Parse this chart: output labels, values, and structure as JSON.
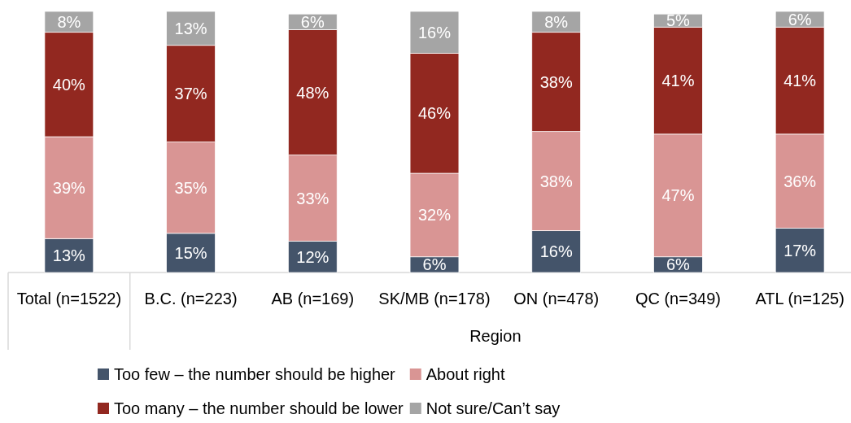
{
  "chart_data": {
    "type": "bar",
    "stacked": true,
    "legend": "bottom",
    "xlabel": "Region",
    "categories": [
      "Total (n=1522)",
      "B.C. (n=223)",
      "AB (n=169)",
      "SK/MB (n=178)",
      "ON (n=478)",
      "QC (n=349)",
      "ATL (n=125)"
    ],
    "series": [
      {
        "name": "Too few – the number should be higher",
        "color": "#44546a",
        "values": [
          13,
          15,
          12,
          6,
          16,
          6,
          17
        ],
        "value_labels": [
          "13%",
          "15%",
          "12%",
          "6%",
          "16%",
          "6%",
          "17%"
        ]
      },
      {
        "name": "About right",
        "color": "#d99594",
        "values": [
          39,
          35,
          33,
          32,
          38,
          47,
          36
        ],
        "value_labels": [
          "39%",
          "35%",
          "33%",
          "32%",
          "38%",
          "47%",
          "36%"
        ]
      },
      {
        "name": "Too many – the number should be lower",
        "color": "#922820",
        "values": [
          40,
          37,
          48,
          46,
          38,
          41,
          41
        ],
        "value_labels": [
          "40%",
          "37%",
          "48%",
          "46%",
          "38%",
          "41%",
          "41%"
        ]
      },
      {
        "name": "Not sure/Can’t say",
        "color": "#a5a5a5",
        "values": [
          8,
          13,
          6,
          16,
          8,
          5,
          6
        ],
        "value_labels": [
          "8%",
          "13%",
          "6%",
          "16%",
          "8%",
          "5%",
          "6%"
        ]
      }
    ]
  }
}
